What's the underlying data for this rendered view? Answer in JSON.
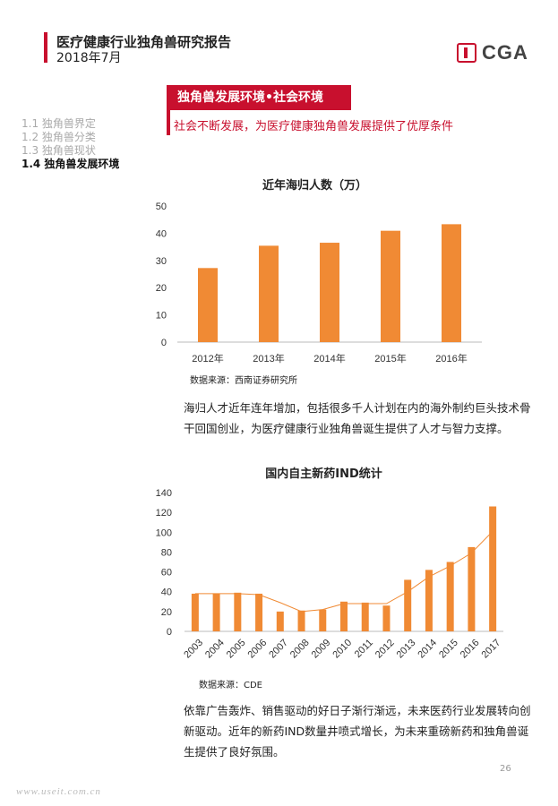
{
  "header": {
    "title": "医疗健康行业独角兽研究报告",
    "date": "2018年7月",
    "logo_text": "CGA"
  },
  "section": {
    "tag": "独角兽发展环境•社会环境",
    "subtitle": "社会不断发展，为医疗健康独角兽发展提供了优厚条件"
  },
  "toc": {
    "items": [
      {
        "label": "1.1 独角兽界定",
        "active": false
      },
      {
        "label": "1.2 独角兽分类",
        "active": false
      },
      {
        "label": "1.3 独角兽现状",
        "active": false
      },
      {
        "label": "1.4 独角兽发展环境",
        "active": true
      }
    ]
  },
  "chart1": {
    "source": "数据来源：西南证券研究所"
  },
  "paragraph1": "海归人才近年连年增加，包括很多千人计划在内的海外制约巨头技术骨干回国创业，为医疗健康行业独角兽诞生提供了人才与智力支撑。",
  "chart2": {
    "source": "数据来源：CDE"
  },
  "paragraph2": "依靠广告轰炸、销售驱动的好日子渐行渐远，未来医药行业发展转向创新驱动。近年的新药IND数量井喷式增长，为未来重磅新药和独角兽诞生提供了良好氛围。",
  "page_number": "26",
  "watermark": "www.useit.com.cn",
  "colors": {
    "accent": "#c8102e",
    "bar": "#f08a34"
  },
  "chart_data": [
    {
      "type": "bar",
      "title": "近年海归人数（万）",
      "categories": [
        "2012年",
        "2013年",
        "2014年",
        "2015年",
        "2016年"
      ],
      "values": [
        27.2,
        35.4,
        36.5,
        40.9,
        43.3
      ],
      "ylim": [
        0,
        50
      ],
      "yticks": [
        0,
        10,
        20,
        30,
        40,
        50
      ],
      "grid": false,
      "xlabel": "",
      "ylabel": ""
    },
    {
      "type": "bar",
      "title": "国内自主新药IND统计",
      "categories": [
        "2003",
        "2004",
        "2005",
        "2006",
        "2007",
        "2008",
        "2009",
        "2010",
        "2011",
        "2012",
        "2013",
        "2014",
        "2015",
        "2016",
        "2017"
      ],
      "values": [
        38,
        38,
        39,
        38,
        20,
        21,
        22,
        30,
        29,
        26,
        52,
        62,
        70,
        85,
        126
      ],
      "trend": [
        38,
        38,
        38,
        37,
        29,
        20,
        22,
        28,
        28,
        28,
        40,
        55,
        66,
        79,
        101
      ],
      "ylim": [
        0,
        140
      ],
      "yticks": [
        0,
        20,
        40,
        60,
        80,
        100,
        120,
        140
      ],
      "grid": false,
      "xlabel": "",
      "ylabel": ""
    }
  ]
}
